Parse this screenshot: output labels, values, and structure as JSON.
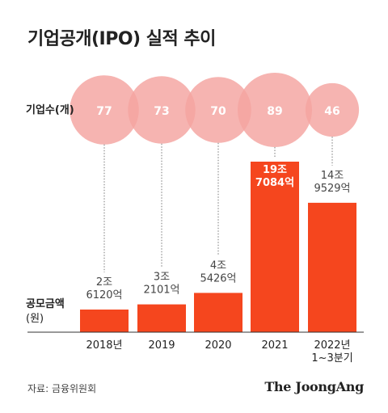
{
  "title": "기업공개(IPO) 실적 추이",
  "count_label": "기업수(개)",
  "amount_label_line1": "공모금액",
  "amount_label_line2": "(원)",
  "source": "자료: 금융위원회",
  "brand": "The JoongAng",
  "colors": {
    "bar": "#f5461e",
    "circle": "#f4a3a0",
    "circle_text": "#ffffff",
    "bar_label": "#444444",
    "highlight_text": "#ffffff"
  },
  "chart_data": {
    "type": "bar",
    "title": "기업공개(IPO) 실적 추이",
    "categories": [
      "2018년",
      "2019",
      "2020",
      "2021",
      "2022년\n1~3분기"
    ],
    "series": [
      {
        "name": "공모금액",
        "values": [
          26120,
          32101,
          45426,
          197084,
          149529
        ],
        "unit": "억원"
      },
      {
        "name": "기업수",
        "values": [
          77,
          73,
          70,
          89,
          46
        ],
        "unit": "개"
      }
    ],
    "amount_labels": [
      [
        "2조",
        "6120억"
      ],
      [
        "3조",
        "2101억"
      ],
      [
        "4조",
        "5426억"
      ],
      [
        "19조",
        "7084억"
      ],
      [
        "14조",
        "9529억"
      ]
    ],
    "highlight_index": 3
  }
}
